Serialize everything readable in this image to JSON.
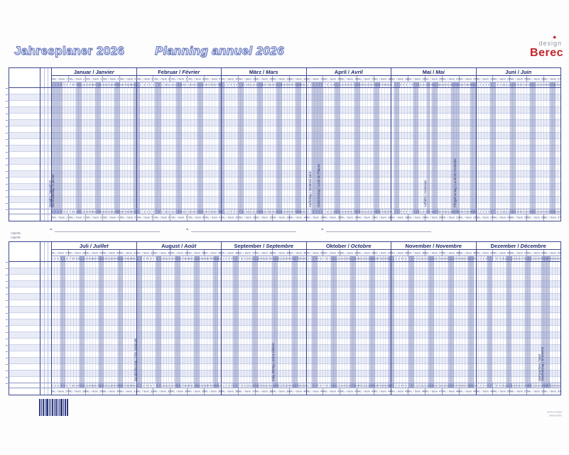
{
  "titles": {
    "de": "Jahresplaner 2026",
    "fr": "Planning annuel 2026"
  },
  "logo": {
    "top": "design",
    "brand": "Berec",
    "diamond": "diamond-icon"
  },
  "legend": {
    "label_de": "Legende:",
    "label_fr": "Légende:",
    "equals": "=",
    "item_count": 3
  },
  "fine_print": {
    "line1": "Berec design",
    "line2": "Switzerland"
  },
  "week_prefix": "Wo. / Sem. ",
  "colors": {
    "navy": "#3c4890",
    "weekend_band": "#b1b8da",
    "brand_red": "#c42429",
    "row_stripe": "#e9ecf7"
  },
  "halves": [
    {
      "name": "top",
      "months": [
        {
          "de": "Januar",
          "fr": "Janvier",
          "days": 31,
          "weeks": [
            1,
            2,
            3,
            4,
            5
          ],
          "weekends": [
            3,
            4,
            10,
            11,
            17,
            18,
            24,
            25,
            31
          ],
          "holidays": [
            {
              "day": 1,
              "label": "Neujahr / Nouvel An"
            },
            {
              "day": 2,
              "label": "Berchtoldstag / 2 janvier"
            }
          ]
        },
        {
          "de": "Februar",
          "fr": "Février",
          "days": 28,
          "weeks": [
            5,
            6,
            7,
            8,
            9
          ],
          "weekends": [
            1,
            7,
            8,
            14,
            15,
            21,
            22,
            28
          ],
          "holidays": []
        },
        {
          "de": "März",
          "fr": "Mars",
          "days": 31,
          "weeks": [
            10,
            11,
            12,
            13,
            14
          ],
          "weekends": [
            1,
            7,
            8,
            14,
            15,
            21,
            22,
            28,
            29
          ],
          "holidays": []
        },
        {
          "de": "April",
          "fr": "Avril",
          "days": 30,
          "weeks": [
            14,
            15,
            16,
            17,
            18
          ],
          "weekends": [
            4,
            5,
            11,
            12,
            18,
            19,
            25,
            26
          ],
          "holidays": [
            {
              "day": 3,
              "label": "Karfreitag / Vendredi saint"
            },
            {
              "day": 6,
              "label": "Ostermontag / Lundi de Pâques"
            }
          ]
        },
        {
          "de": "Mai",
          "fr": "Mai",
          "days": 31,
          "weeks": [
            18,
            19,
            20,
            21,
            22
          ],
          "weekends": [
            2,
            3,
            9,
            10,
            16,
            17,
            23,
            24,
            30,
            31
          ],
          "holidays": [
            {
              "day": 14,
              "label": "Auffahrt / Ascension"
            },
            {
              "day": 25,
              "label": "Pfingstmontag / Lundi de Pentecôte"
            }
          ]
        },
        {
          "de": "Juni",
          "fr": "Juin",
          "days": 30,
          "weeks": [
            23,
            24,
            25,
            26,
            27
          ],
          "weekends": [
            6,
            7,
            13,
            14,
            20,
            21,
            27,
            28
          ],
          "holidays": []
        }
      ]
    },
    {
      "name": "bottom",
      "months": [
        {
          "de": "Juli",
          "fr": "Juillet",
          "days": 31,
          "weeks": [
            27,
            28,
            29,
            30,
            31
          ],
          "weekends": [
            4,
            5,
            11,
            12,
            18,
            19,
            25,
            26
          ],
          "holidays": []
        },
        {
          "de": "August",
          "fr": "Août",
          "days": 31,
          "weeks": [
            32,
            33,
            34,
            35,
            36
          ],
          "weekends": [
            1,
            2,
            8,
            9,
            15,
            16,
            22,
            23,
            29,
            30
          ],
          "holidays": [
            {
              "day": 1,
              "label": "Bundesfeiertag / Fête nationale"
            }
          ]
        },
        {
          "de": "September",
          "fr": "Septembre",
          "days": 30,
          "weeks": [
            36,
            37,
            38,
            39,
            40
          ],
          "weekends": [
            5,
            6,
            12,
            13,
            19,
            20,
            26,
            27
          ],
          "holidays": [
            {
              "day": 20,
              "label": "Eidg. Bettag / Jeûne fédéral"
            }
          ]
        },
        {
          "de": "Oktober",
          "fr": "Octobre",
          "days": 31,
          "weeks": [
            40,
            41,
            42,
            43,
            44
          ],
          "weekends": [
            3,
            4,
            10,
            11,
            17,
            18,
            24,
            25,
            31
          ],
          "holidays": []
        },
        {
          "de": "November",
          "fr": "Novembre",
          "days": 30,
          "weeks": [
            45,
            46,
            47,
            48,
            49
          ],
          "weekends": [
            1,
            7,
            8,
            14,
            15,
            21,
            22,
            28,
            29
          ],
          "holidays": []
        },
        {
          "de": "Dezember",
          "fr": "Décembre",
          "days": 31,
          "weeks": [
            49,
            50,
            51,
            52,
            53
          ],
          "weekends": [
            5,
            6,
            12,
            13,
            19,
            20,
            26,
            27
          ],
          "holidays": [
            {
              "day": 25,
              "label": "Weihnachten / Noël"
            },
            {
              "day": 26,
              "label": "Stephanstag / St-Etienne"
            }
          ]
        }
      ]
    }
  ]
}
